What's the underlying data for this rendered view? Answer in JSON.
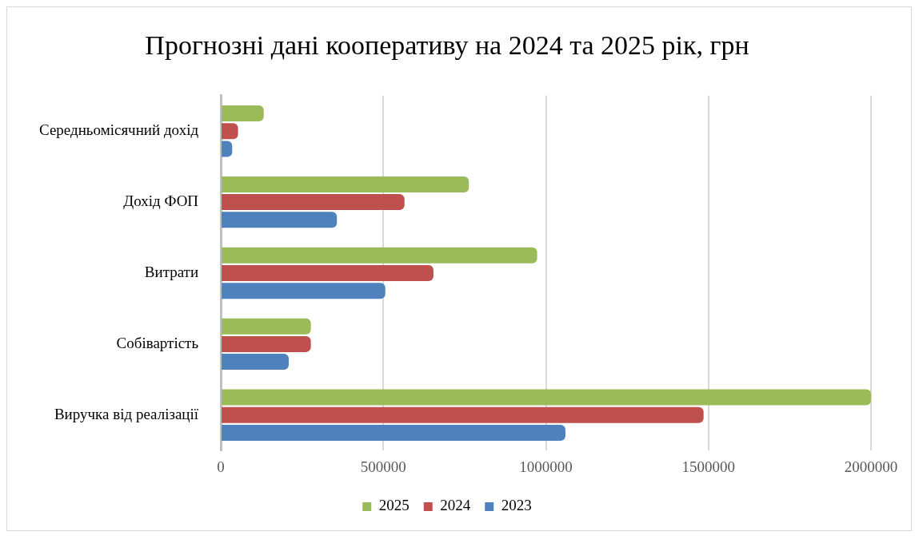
{
  "chart_data": {
    "type": "bar",
    "orientation": "horizontal",
    "title": "Прогнозні дані кооперативу на 2024 та 2025 рік, грн",
    "categories": [
      "Середньомісячний дохід",
      "Дохід ФОП",
      "Витрати",
      "Собівартість",
      "Виручка від реалізації"
    ],
    "series": [
      {
        "name": "2025",
        "color": "#9bbb59",
        "values": [
          132000,
          763000,
          973000,
          277000,
          2000000
        ]
      },
      {
        "name": "2024",
        "color": "#c0504d",
        "values": [
          53000,
          565000,
          654000,
          277000,
          1485000
        ]
      },
      {
        "name": "2023",
        "color": "#4f81bd",
        "values": [
          35000,
          357000,
          506000,
          209000,
          1060000
        ]
      }
    ],
    "xlim": [
      0,
      2000000
    ],
    "xticks": [
      0,
      500000,
      1000000,
      1500000,
      2000000
    ],
    "grid": "x",
    "legend": "bottom"
  }
}
